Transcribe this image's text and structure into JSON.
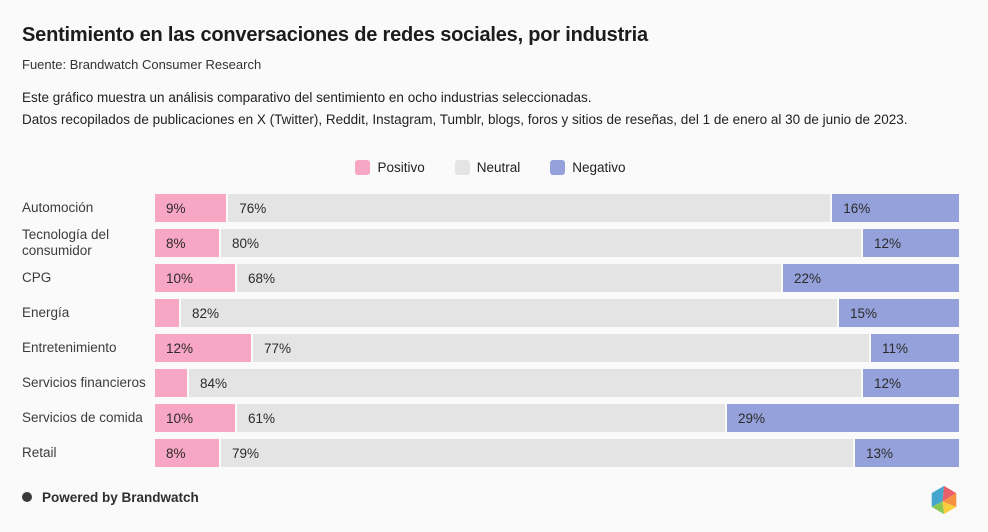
{
  "header": {
    "title": "Sentimiento en las conversaciones de redes sociales, por industria",
    "source": "Fuente: Brandwatch Consumer Research",
    "description_line1": "Este gráfico muestra un análisis comparativo del sentimiento en ocho industrias seleccionadas.",
    "description_line2": "Datos recopilados de publicaciones en X (Twitter), Reddit, Instagram, Tumblr, blogs, foros y sitios de reseñas, del 1 de enero al 30 de junio de 2023."
  },
  "legend": [
    {
      "label": "Positivo",
      "color": "#F7A6C4"
    },
    {
      "label": "Neutral",
      "color": "#E4E4E4"
    },
    {
      "label": "Negativo",
      "color": "#95A1DA"
    }
  ],
  "chart_data": {
    "type": "bar",
    "orientation": "horizontal",
    "stacked": true,
    "unit": "%",
    "xlim": [
      0,
      100
    ],
    "grid": false,
    "legend_position": "top-center",
    "categories": [
      "Automoción",
      "Tecnología del consumidor",
      "CPG",
      "Energía",
      "Entretenimiento",
      "Servicios financieros",
      "Servicios de comida",
      "Retail"
    ],
    "series": [
      {
        "name": "Positivo",
        "color": "#F7A6C4",
        "values": [
          9,
          8,
          10,
          3,
          12,
          4,
          10,
          8
        ]
      },
      {
        "name": "Neutral",
        "color": "#E4E4E4",
        "values": [
          76,
          80,
          68,
          82,
          77,
          84,
          61,
          79
        ]
      },
      {
        "name": "Negativo",
        "color": "#95A1DA",
        "values": [
          16,
          12,
          22,
          15,
          11,
          12,
          29,
          13
        ]
      }
    ],
    "value_labels": [
      [
        "9%",
        "76%",
        "16%"
      ],
      [
        "8%",
        "80%",
        "12%"
      ],
      [
        "10%",
        "68%",
        "22%"
      ],
      [
        "",
        "82%",
        "15%"
      ],
      [
        "12%",
        "77%",
        "11%"
      ],
      [
        "",
        "84%",
        "12%"
      ],
      [
        "10%",
        "61%",
        "29%"
      ],
      [
        "8%",
        "79%",
        "13%"
      ]
    ]
  },
  "footer": {
    "powered_by": "Powered by Brandwatch"
  }
}
